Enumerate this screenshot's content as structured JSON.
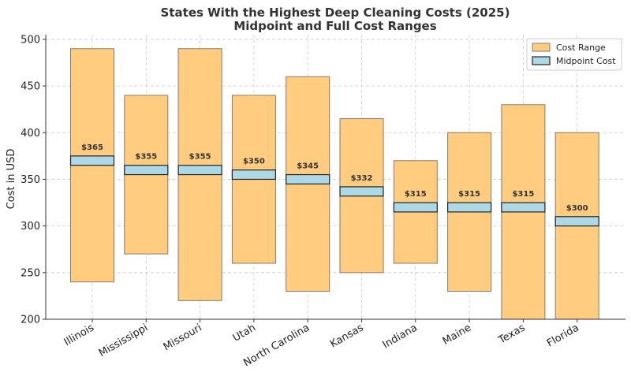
{
  "chart_data": {
    "type": "bar",
    "title": "States With the Highest Deep Cleaning Costs (2025)",
    "subtitle": "Midpoint and Full Cost Ranges",
    "xlabel": "",
    "ylabel": "Cost in USD",
    "ylim": [
      200,
      505
    ],
    "yticks": [
      200,
      250,
      300,
      350,
      400,
      450,
      500
    ],
    "grid": true,
    "legend_position": "top-right",
    "categories": [
      "Illinois",
      "Mississippi",
      "Missouri",
      "Utah",
      "North Carolina",
      "Kansas",
      "Indiana",
      "Maine",
      "Texas",
      "Florida"
    ],
    "series": [
      {
        "name": "Cost Range",
        "color": "#ffcc80",
        "low": [
          240,
          270,
          220,
          260,
          230,
          250,
          260,
          230,
          200,
          200
        ],
        "high": [
          490,
          440,
          490,
          440,
          460,
          415,
          370,
          400,
          430,
          400
        ]
      },
      {
        "name": "Midpoint Cost",
        "color": "#add8e6",
        "values": [
          365,
          355,
          355,
          350,
          345,
          332,
          315,
          315,
          315,
          300
        ],
        "labels": [
          "$365",
          "$355",
          "$355",
          "$350",
          "$345",
          "$332",
          "$315",
          "$315",
          "$315",
          "$300"
        ]
      }
    ]
  }
}
